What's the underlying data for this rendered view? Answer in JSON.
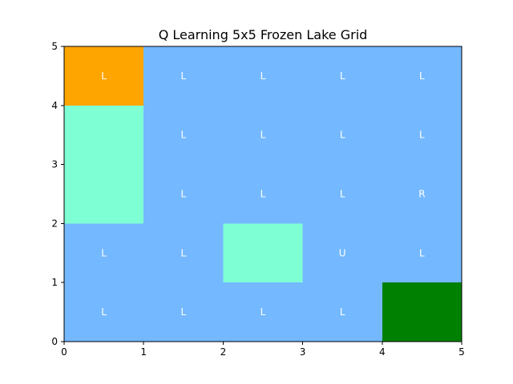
{
  "chart_data": {
    "type": "heatmap",
    "title": "Q Learning 5x5 Frozen Lake Grid",
    "xlabel": "",
    "ylabel": "",
    "xlim": [
      0,
      5
    ],
    "ylim": [
      0,
      5
    ],
    "x_ticks": [
      "0",
      "1",
      "2",
      "3",
      "4",
      "5"
    ],
    "y_ticks": [
      "0",
      "1",
      "2",
      "3",
      "4",
      "5"
    ],
    "grid": false,
    "rows": 5,
    "cols": 5,
    "colors": {
      "frozen": "#74b9ff",
      "start": "#ffa500",
      "hole": "#7fffd4",
      "goal": "#008000"
    },
    "cells": [
      {
        "row": 4,
        "col": 0,
        "kind": "start",
        "action": "L"
      },
      {
        "row": 4,
        "col": 1,
        "kind": "frozen",
        "action": "L"
      },
      {
        "row": 4,
        "col": 2,
        "kind": "frozen",
        "action": "L"
      },
      {
        "row": 4,
        "col": 3,
        "kind": "frozen",
        "action": "L"
      },
      {
        "row": 4,
        "col": 4,
        "kind": "frozen",
        "action": "L"
      },
      {
        "row": 3,
        "col": 0,
        "kind": "hole",
        "action": ""
      },
      {
        "row": 3,
        "col": 1,
        "kind": "frozen",
        "action": "L"
      },
      {
        "row": 3,
        "col": 2,
        "kind": "frozen",
        "action": "L"
      },
      {
        "row": 3,
        "col": 3,
        "kind": "frozen",
        "action": "L"
      },
      {
        "row": 3,
        "col": 4,
        "kind": "frozen",
        "action": "L"
      },
      {
        "row": 2,
        "col": 0,
        "kind": "hole",
        "action": ""
      },
      {
        "row": 2,
        "col": 1,
        "kind": "frozen",
        "action": "L"
      },
      {
        "row": 2,
        "col": 2,
        "kind": "frozen",
        "action": "L"
      },
      {
        "row": 2,
        "col": 3,
        "kind": "frozen",
        "action": "L"
      },
      {
        "row": 2,
        "col": 4,
        "kind": "frozen",
        "action": "R"
      },
      {
        "row": 1,
        "col": 0,
        "kind": "frozen",
        "action": "L"
      },
      {
        "row": 1,
        "col": 1,
        "kind": "frozen",
        "action": "L"
      },
      {
        "row": 1,
        "col": 2,
        "kind": "hole",
        "action": ""
      },
      {
        "row": 1,
        "col": 3,
        "kind": "frozen",
        "action": "U"
      },
      {
        "row": 1,
        "col": 4,
        "kind": "frozen",
        "action": "L"
      },
      {
        "row": 0,
        "col": 0,
        "kind": "frozen",
        "action": "L"
      },
      {
        "row": 0,
        "col": 1,
        "kind": "frozen",
        "action": "L"
      },
      {
        "row": 0,
        "col": 2,
        "kind": "frozen",
        "action": "L"
      },
      {
        "row": 0,
        "col": 3,
        "kind": "frozen",
        "action": "L"
      },
      {
        "row": 0,
        "col": 4,
        "kind": "goal",
        "action": ""
      }
    ]
  }
}
